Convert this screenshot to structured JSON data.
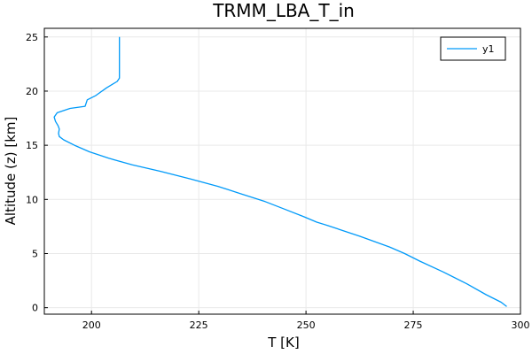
{
  "chart_data": {
    "type": "line",
    "title": "TRMM_LBA_T_in",
    "xlabel": "T [K]",
    "ylabel": "Altitude (z) [km]",
    "xlim": [
      189,
      300
    ],
    "ylim": [
      -0.6,
      25.8
    ],
    "xticks": [
      200,
      225,
      250,
      275,
      300
    ],
    "yticks": [
      0,
      5,
      10,
      15,
      20,
      25
    ],
    "grid": true,
    "legend_position": "top-right",
    "series": [
      {
        "name": "y1",
        "color": "#009af9",
        "x": [
          296.8,
          295.5,
          292.0,
          287.5,
          282.0,
          276.5,
          273.0,
          269.5,
          266.0,
          262.5,
          258.0,
          255.0,
          252.5,
          249.5,
          245.0,
          240.5,
          235.0,
          229.5,
          223.0,
          216.0,
          209.5,
          204.0,
          199.5,
          196.0,
          193.5,
          192.5,
          192.3,
          192.5,
          192.2,
          191.6,
          191.3,
          192.0,
          195.0,
          198.5,
          199.0,
          201.0,
          203.5,
          206.0,
          206.5,
          206.5,
          206.5,
          206.5
        ],
        "y": [
          0.1,
          0.5,
          1.2,
          2.2,
          3.3,
          4.3,
          5.0,
          5.6,
          6.1,
          6.6,
          7.2,
          7.6,
          7.9,
          8.4,
          9.1,
          9.8,
          10.5,
          11.2,
          11.9,
          12.6,
          13.2,
          13.8,
          14.4,
          15.0,
          15.5,
          15.8,
          16.1,
          16.5,
          16.8,
          17.2,
          17.6,
          18.0,
          18.4,
          18.6,
          19.2,
          19.6,
          20.3,
          20.9,
          21.2,
          22.5,
          24.0,
          25.0
        ]
      }
    ]
  }
}
